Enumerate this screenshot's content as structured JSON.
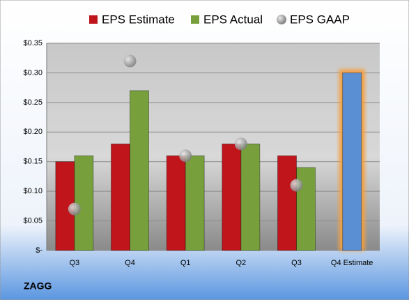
{
  "chart_data": {
    "type": "bar",
    "categories": [
      "Q3",
      "Q4",
      "Q1",
      "Q2",
      "Q3",
      "Q4 Estimate"
    ],
    "series": [
      {
        "name": "EPS Estimate",
        "color": "#c0151b",
        "colors": [
          "#c0151b",
          "#c0151b",
          "#c0151b",
          "#c0151b",
          "#c0151b",
          "#5b8fd4"
        ],
        "values": [
          0.15,
          0.18,
          0.16,
          0.18,
          0.16,
          0.3
        ]
      },
      {
        "name": "EPS Actual",
        "color": "#77a03c",
        "values": [
          0.16,
          0.27,
          0.16,
          0.18,
          0.14,
          null
        ]
      },
      {
        "name": "EPS GAAP",
        "type": "scatter",
        "color": "#a8a8a8",
        "values": [
          0.07,
          0.32,
          0.16,
          0.18,
          0.11,
          null
        ]
      }
    ],
    "ylim": [
      0,
      0.35
    ],
    "yticks": [
      {
        "value": 0,
        "label": "$-"
      },
      {
        "value": 0.05,
        "label": "$0.05"
      },
      {
        "value": 0.1,
        "label": "$0.10"
      },
      {
        "value": 0.15,
        "label": "$0.15"
      },
      {
        "value": 0.2,
        "label": "$0.20"
      },
      {
        "value": 0.25,
        "label": "$0.25"
      },
      {
        "value": 0.3,
        "label": "$0.30"
      },
      {
        "value": 0.35,
        "label": "$0.35"
      }
    ],
    "grid": true,
    "legend": "top",
    "footer": "ZAGG"
  }
}
